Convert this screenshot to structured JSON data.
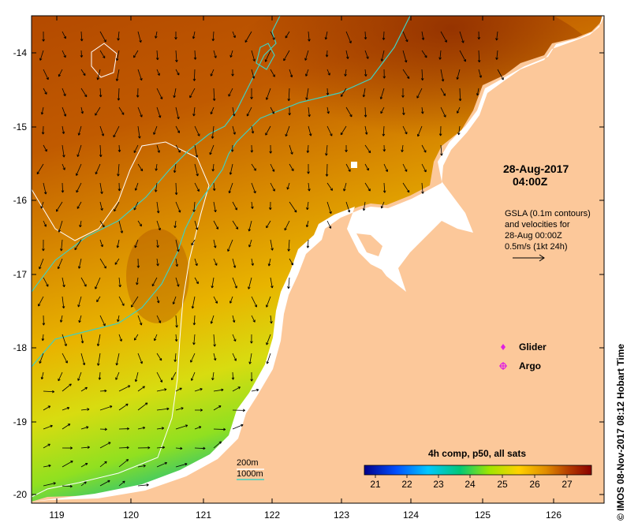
{
  "map": {
    "date": "28-Aug-2017",
    "time": "04:00Z",
    "gsla_note": [
      "GSLA (0.1m contours)",
      "and velocities for",
      "28-Aug 00:00Z",
      "0.5m/s (1kt 24h)"
    ],
    "legend": [
      {
        "label": "Glider",
        "symbol": "diamond",
        "color": "#e020e0"
      },
      {
        "label": "Argo",
        "symbol": "circle-star",
        "color": "#e020e0"
      }
    ],
    "colorbar": {
      "title": "4h comp, p50, all sats",
      "ticks": [
        "21",
        "22",
        "23",
        "24",
        "25",
        "26",
        "27"
      ],
      "colors": [
        "#00008b",
        "#0050ff",
        "#00c8ff",
        "#00c878",
        "#a0e600",
        "#ffd200",
        "#e08c00",
        "#b43c00",
        "#8b0000"
      ]
    },
    "depth_contours": [
      {
        "label": "200m",
        "color": "#ffffff"
      },
      {
        "label": "1000m",
        "color": "#40d0c0"
      }
    ],
    "lat_ticks": [
      "-14",
      "-15",
      "-16",
      "-17",
      "-18",
      "-19",
      "-20"
    ],
    "lon_ticks": [
      "119",
      "120",
      "121",
      "122",
      "123",
      "124",
      "125",
      "126"
    ],
    "credit": "© IMOS 08-Nov-2017 08:12 Hobart Time",
    "land_color": "#fcc89a"
  }
}
